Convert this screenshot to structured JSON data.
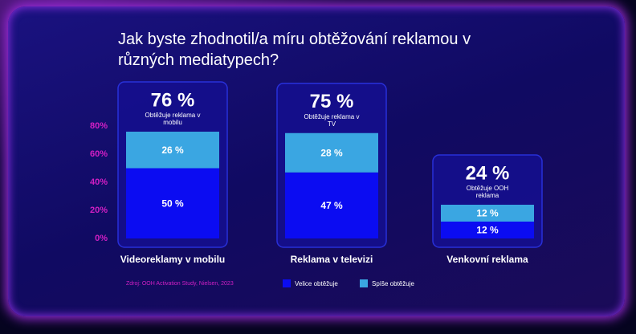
{
  "chart_data": {
    "type": "stacked_bar",
    "title": "Jak byste zhodnotil/a míru obtěžování reklamou v různých mediatypech?",
    "categories": [
      "Videoreklamy v mobilu",
      "Reklama v televizi",
      "Venkovní reklama"
    ],
    "series": [
      {
        "name": "Velice obtěžuje",
        "color": "#0b0cf2",
        "values": [
          50,
          47,
          12
        ],
        "value_labels": [
          "50 %",
          "47 %",
          "12 %"
        ]
      },
      {
        "name": "Spíše obtěžuje",
        "color": "#3aa6e2",
        "values": [
          26,
          28,
          12
        ],
        "value_labels": [
          "26 %",
          "28 %",
          "12 %"
        ]
      }
    ],
    "totals": [
      76,
      75,
      24
    ],
    "total_labels": [
      "76 %",
      "75 %",
      "24 %"
    ],
    "total_notes": [
      "Obtěžuje reklama v mobilu",
      "Obtěžuje reklama v TV",
      "Obtěžuje OOH reklama"
    ],
    "ylim": [
      0,
      80
    ],
    "yticks": [
      {
        "value": 0,
        "label": "0%"
      },
      {
        "value": 20,
        "label": "20%"
      },
      {
        "value": 40,
        "label": "40%"
      },
      {
        "value": 60,
        "label": "60%"
      },
      {
        "value": 80,
        "label": "80%"
      }
    ],
    "ytick_color": "#d21fc4",
    "grid": false,
    "source": "Zdroj: OOH Activation Study, Nielsen, 2023"
  }
}
